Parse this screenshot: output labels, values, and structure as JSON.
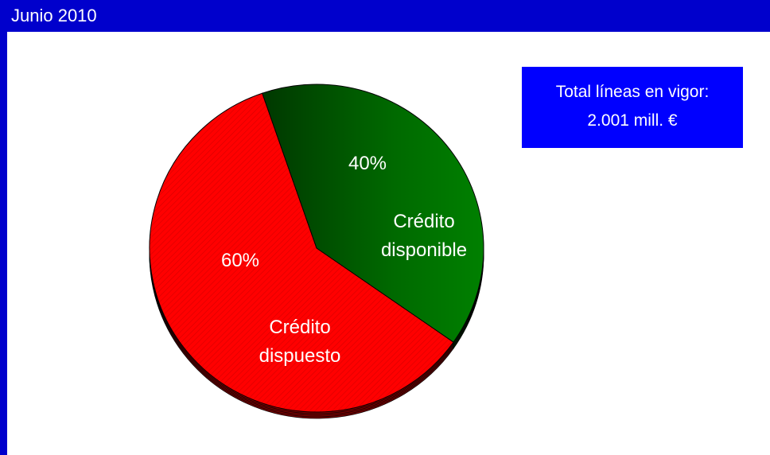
{
  "header": {
    "title": "Junio 2010"
  },
  "info_box": {
    "line1": "Total líneas en vigor:",
    "line2": "2.001 mill. €"
  },
  "chart_data": {
    "type": "pie",
    "title": "Junio 2010",
    "slices": [
      {
        "label_line1": "Crédito",
        "label_line2": "disponible",
        "value": 40,
        "percent_label": "40%",
        "color": "#008000"
      },
      {
        "label_line1": "Crédito",
        "label_line2": "dispuesto",
        "value": 60,
        "percent_label": "60%",
        "color": "#ff0000"
      }
    ],
    "legend": "none"
  },
  "colors": {
    "header_bg": "#0000cc",
    "info_box_bg": "#0000ff"
  }
}
